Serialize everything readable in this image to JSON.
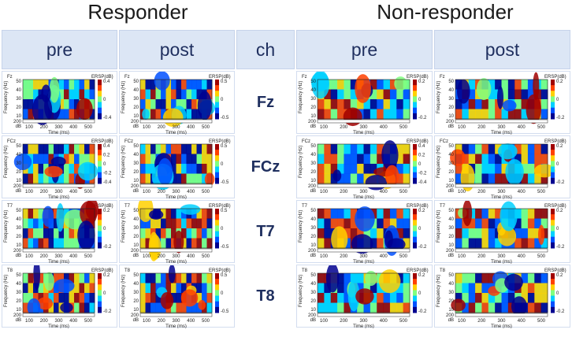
{
  "groups": {
    "responder": "Responder",
    "non_responder": "Non-responder"
  },
  "headers": {
    "pre_r": "pre",
    "post_r": "post",
    "ch": "ch",
    "pre_n": "pre",
    "post_n": "post"
  },
  "channels": [
    "Fz",
    "FCz",
    "T7",
    "T8"
  ],
  "plot_labels": {
    "ersp": "ERSP(dB)",
    "ylabel": "Frequency (Hz)",
    "xlabel": "Time (ms)",
    "db": "dB",
    "yticks": [
      "50",
      "40",
      "30",
      "20",
      "10"
    ],
    "xticks": [
      "100",
      "200",
      "300",
      "400",
      "500"
    ],
    "x_first": "200"
  },
  "colorbars": {
    "Fz": [
      [
        "0.4",
        "0",
        "-0.4"
      ],
      [
        "0.5",
        "0",
        "-0.5"
      ],
      [
        "0.2",
        "0",
        "-0.2"
      ],
      [
        "0.2",
        "0",
        "-0.2"
      ]
    ],
    "FCz": [
      [
        "0.4",
        "0.2",
        "0",
        "-0.2",
        "-0.4"
      ],
      [
        "0.5",
        "0",
        "-0.5"
      ],
      [
        "0.4",
        "0.2",
        "0",
        "-0.2",
        "-0.4"
      ],
      [
        "0.2",
        "0",
        "-0.2"
      ]
    ],
    "T7": [
      [
        "0.2",
        "0",
        "-0.2"
      ],
      [
        "0.5",
        "0",
        "-0.5"
      ],
      [
        "0.2",
        "0",
        "-0.2"
      ],
      [
        "0.2",
        "0",
        "-0.2"
      ]
    ],
    "T8": [
      [
        "0.2",
        "0",
        "-0.2"
      ],
      [
        "0.5",
        "0",
        "-0.5"
      ],
      [
        "0.2",
        "0",
        "-0.2"
      ],
      [
        "0.2",
        "0",
        "-0.2"
      ]
    ]
  },
  "colors": {
    "header_bg": "#dce6f5",
    "cell_bg": "#e8eef8",
    "ch_text": "#1f2f5f",
    "colormap": [
      "#00008f",
      "#0050ff",
      "#00d0ff",
      "#80ff80",
      "#ffd000",
      "#ff4000",
      "#a00000"
    ]
  }
}
